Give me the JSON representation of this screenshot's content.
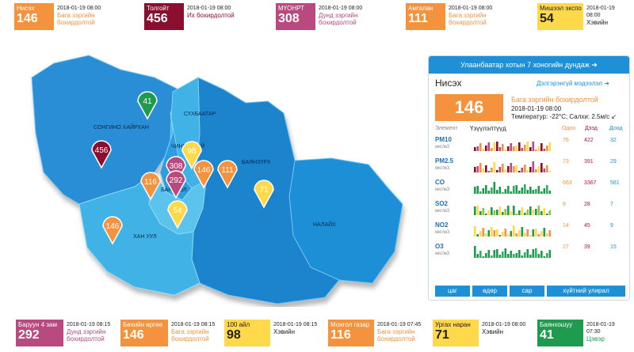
{
  "top_tiles": [
    {
      "name": "Нисэх",
      "value": "146",
      "time": "2018-01-19 08:00",
      "status": "Бага зэргийн бохирдолтой",
      "color": "#f5923e",
      "status_color": "#f5923e"
    },
    {
      "name": "Толгойт",
      "value": "456",
      "time": "2018-01-19 08:00",
      "status": "Их бохирдолтой",
      "color": "#8a0e2d",
      "status_color": "#8a0e2d"
    },
    {
      "name": "МҮОНРТ",
      "value": "308",
      "time": "2018-01-19 08:00",
      "status": "Дунд зэргийн бохирдолтой",
      "color": "#b84a7f",
      "status_color": "#b84a7f"
    },
    {
      "name": "Амгалан",
      "value": "111",
      "time": "2018-01-19 08:00",
      "status": "Бага зэргийн бохирдолтой",
      "color": "#f5923e",
      "status_color": "#f5923e"
    },
    {
      "name": "Мишээл экспо",
      "value": "54",
      "time": "2018-01-19 08:00",
      "status": "Хэвийн",
      "color": "#ffd94a",
      "status_color": "#222222"
    }
  ],
  "bottom_tiles": [
    {
      "name": "Баруун 4 зам",
      "value": "292",
      "time": "2018-01-19 08:15",
      "status": "Дунд зэргийн бохирдолтой",
      "color": "#b84a7f",
      "status_color": "#b84a7f"
    },
    {
      "name": "Бөхийн өргөө",
      "value": "146",
      "time": "2018-01-19 08:15",
      "status": "Бага зэргийн бохирдолтой",
      "color": "#f5923e",
      "status_color": "#f5923e"
    },
    {
      "name": "100 айл",
      "value": "98",
      "time": "2018-01-19 08:15",
      "status": "Хэвийн",
      "color": "#ffd94a",
      "status_color": "#222222"
    },
    {
      "name": "Монгол газар",
      "value": "116",
      "time": "2018-01-19 07:45",
      "status": "Бага зэргийн бохирдолтой",
      "color": "#f5923e",
      "status_color": "#f5923e"
    },
    {
      "name": "Ургах наран",
      "value": "71",
      "time": "2018-01-19 08:00",
      "status": "Хэвийн",
      "color": "#ffd94a",
      "status_color": "#222222"
    },
    {
      "name": "Баянхошуу",
      "value": "41",
      "time": "2018-01-19 07:30",
      "status": "Цэвэр",
      "color": "#1e9b4e",
      "status_color": "#1e9b4e"
    }
  ],
  "map": {
    "districts": [
      "СОНГИНО ХАЙРХАН",
      "СҮХБААТАР",
      "ЧИНГЭЛТЭЙ",
      "БАЯНЗҮРХ",
      "БАЯНГОЛ",
      "ХАН УУЛ",
      "НАЛАЙХ"
    ],
    "markers": [
      {
        "value": "41",
        "color": "#1e9b4e"
      },
      {
        "value": "456",
        "color": "#8a0e2d"
      },
      {
        "value": "98",
        "color": "#ffd94a"
      },
      {
        "value": "308",
        "color": "#b84a7f"
      },
      {
        "value": "292",
        "color": "#b84a7f"
      },
      {
        "value": "116",
        "color": "#f5923e"
      },
      {
        "value": "146",
        "color": "#f5923e"
      },
      {
        "value": "111",
        "color": "#f5923e"
      },
      {
        "value": "71",
        "color": "#ffd94a"
      },
      {
        "value": "54",
        "color": "#ffd94a"
      },
      {
        "value": "146",
        "color": "#f5923e"
      }
    ]
  },
  "panel": {
    "header": "Улаанбаатар хотын 7 хоногийн дундаж",
    "station": "Нисэх",
    "more_link": "Дэлгэрэнгүй мэдээлэл",
    "aqi": "146",
    "status": "Бага зэргийн бохирдолтой",
    "time": "2018-01-19 08:00",
    "weather": "Температур: -22°C; Салхи: 2.5м/с",
    "col_element": "Элемент",
    "col_trend": "Үзүүлэлтүүд",
    "col_current": "Одоо",
    "col_max": "Дээд",
    "col_min": "Доод",
    "pollutants": [
      {
        "name": "PM10",
        "unit": "мкг/м3",
        "current": "76",
        "max": "422",
        "min": "32"
      },
      {
        "name": "PM2.5",
        "unit": "мкг/м3",
        "current": "73",
        "max": "391",
        "min": "29"
      },
      {
        "name": "CO",
        "unit": "мкг/м3",
        "current": "663",
        "max": "3367",
        "min": "561"
      },
      {
        "name": "SO2",
        "unit": "мкг/м3",
        "current": "9",
        "max": "28",
        "min": "7"
      },
      {
        "name": "NO2",
        "unit": "мкг/м3",
        "current": "14",
        "max": "45",
        "min": "9"
      },
      {
        "name": "O3",
        "unit": "мкг/м3",
        "current": "27",
        "max": "39",
        "min": "15"
      }
    ],
    "tabs": [
      "цаг",
      "өдөр",
      "сар",
      "хүйтний улирал"
    ]
  }
}
